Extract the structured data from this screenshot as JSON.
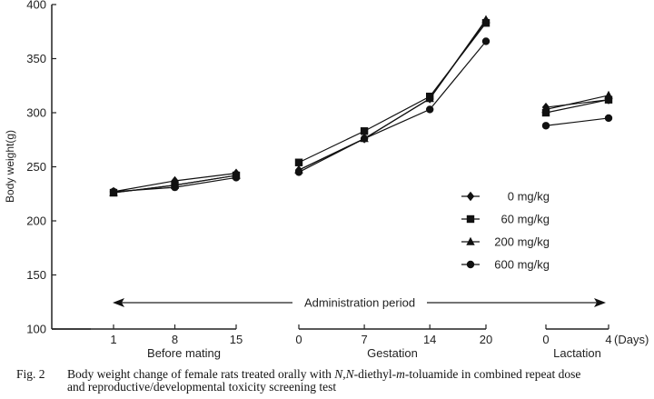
{
  "chart_data": {
    "type": "line",
    "title": "",
    "ylabel": "Body weight(g)",
    "xlabel": "(Days)",
    "ylim": [
      100,
      400
    ],
    "yticks": [
      100,
      150,
      200,
      250,
      300,
      350,
      400
    ],
    "grid": false,
    "legend_position": "right-center",
    "segments": [
      {
        "name": "Before mating",
        "days": [
          1,
          8,
          15
        ],
        "tick_labels": [
          "1",
          "8",
          "15"
        ]
      },
      {
        "name": "Gestation",
        "days": [
          0,
          7,
          14,
          20
        ],
        "tick_labels": [
          "0",
          "7",
          "14",
          "20"
        ]
      },
      {
        "name": "Lactation",
        "days": [
          0,
          4
        ],
        "tick_labels": [
          "0",
          "4"
        ]
      }
    ],
    "series": [
      {
        "name": "0 mg/kg",
        "marker": "diamond",
        "values": [
          [
            227,
            237,
            244
          ],
          [
            247,
            276,
            313,
            385
          ],
          [
            305,
            312
          ]
        ]
      },
      {
        "name": "60 mg/kg",
        "marker": "square",
        "values": [
          [
            226,
            233,
            242
          ],
          [
            254,
            283,
            315,
            383
          ],
          [
            300,
            312
          ]
        ]
      },
      {
        "name": "200 mg/kg",
        "marker": "triangle",
        "values": [
          [
            226,
            233,
            242
          ],
          [
            247,
            276,
            313,
            386
          ],
          [
            303,
            316
          ]
        ]
      },
      {
        "name": "600 mg/kg",
        "marker": "circle",
        "values": [
          [
            227,
            231,
            240
          ],
          [
            245,
            276,
            303,
            366
          ],
          [
            288,
            295
          ]
        ]
      }
    ],
    "annotation": "Administration period",
    "days_label": "(Days)"
  },
  "caption": {
    "label": "Fig. 2",
    "text_line1_a": "Body weight change of female rats treated orally with ",
    "text_italic_1": "N,N",
    "text_line1_b": "-diethyl-",
    "text_italic_2": "m",
    "text_line1_c": "-toluamide in combined repeat dose",
    "text_line2": "and reproductive/developmental toxicity screening test"
  }
}
